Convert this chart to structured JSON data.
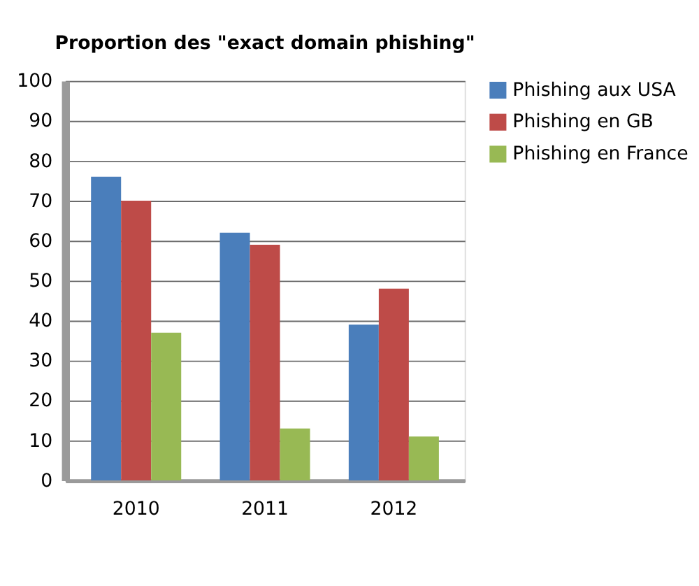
{
  "chart_data": {
    "type": "bar",
    "title": "Proportion des \"exact domain phishing\"",
    "categories": [
      "2010",
      "2011",
      "2012"
    ],
    "series": [
      {
        "name": "Phishing aux USA",
        "color": "#4a7ebb",
        "values": [
          76,
          62,
          39
        ]
      },
      {
        "name": "Phishing en GB",
        "color": "#be4b48",
        "values": [
          70,
          59,
          48
        ]
      },
      {
        "name": "Phishing en France",
        "color": "#98b954",
        "values": [
          37,
          13,
          11
        ]
      }
    ],
    "ylim": [
      0,
      100
    ],
    "yticks": [
      0,
      10,
      20,
      30,
      40,
      50,
      60,
      70,
      80,
      90,
      100
    ],
    "grid": "y",
    "legend": "right"
  }
}
